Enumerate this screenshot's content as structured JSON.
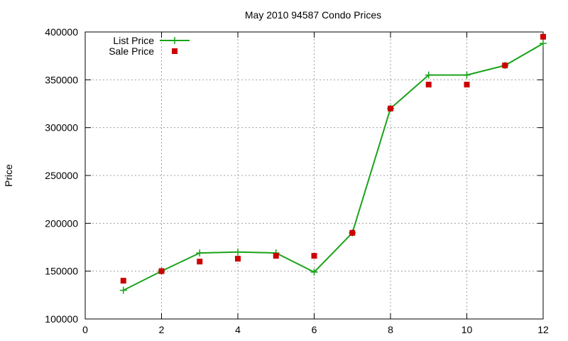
{
  "chart_data": {
    "type": "line",
    "title": "May 2010 94587 Condo Prices",
    "xlabel": "",
    "ylabel": "Price",
    "xlim": [
      0,
      12
    ],
    "ylim": [
      100000,
      400000
    ],
    "xticks": [
      0,
      2,
      4,
      6,
      8,
      10,
      12
    ],
    "yticks": [
      100000,
      150000,
      200000,
      250000,
      300000,
      350000,
      400000
    ],
    "grid": true,
    "legend_position": "top-left",
    "series": [
      {
        "name": "List Price",
        "style": "line-with-plus-markers",
        "color": "#1aa31a",
        "x": [
          1,
          2,
          3,
          4,
          5,
          6,
          7,
          8,
          9,
          10,
          11,
          12
        ],
        "y": [
          130000,
          150000,
          169000,
          170000,
          169000,
          149000,
          190000,
          320000,
          355000,
          355000,
          365000,
          388000
        ]
      },
      {
        "name": "Sale Price",
        "style": "square-markers",
        "color": "#cc0000",
        "x": [
          1,
          2,
          3,
          4,
          5,
          6,
          7,
          8,
          9,
          10,
          11,
          12
        ],
        "y": [
          140000,
          150000,
          160000,
          163000,
          166000,
          166000,
          190000,
          320000,
          345000,
          345000,
          365000,
          395000
        ]
      }
    ]
  }
}
